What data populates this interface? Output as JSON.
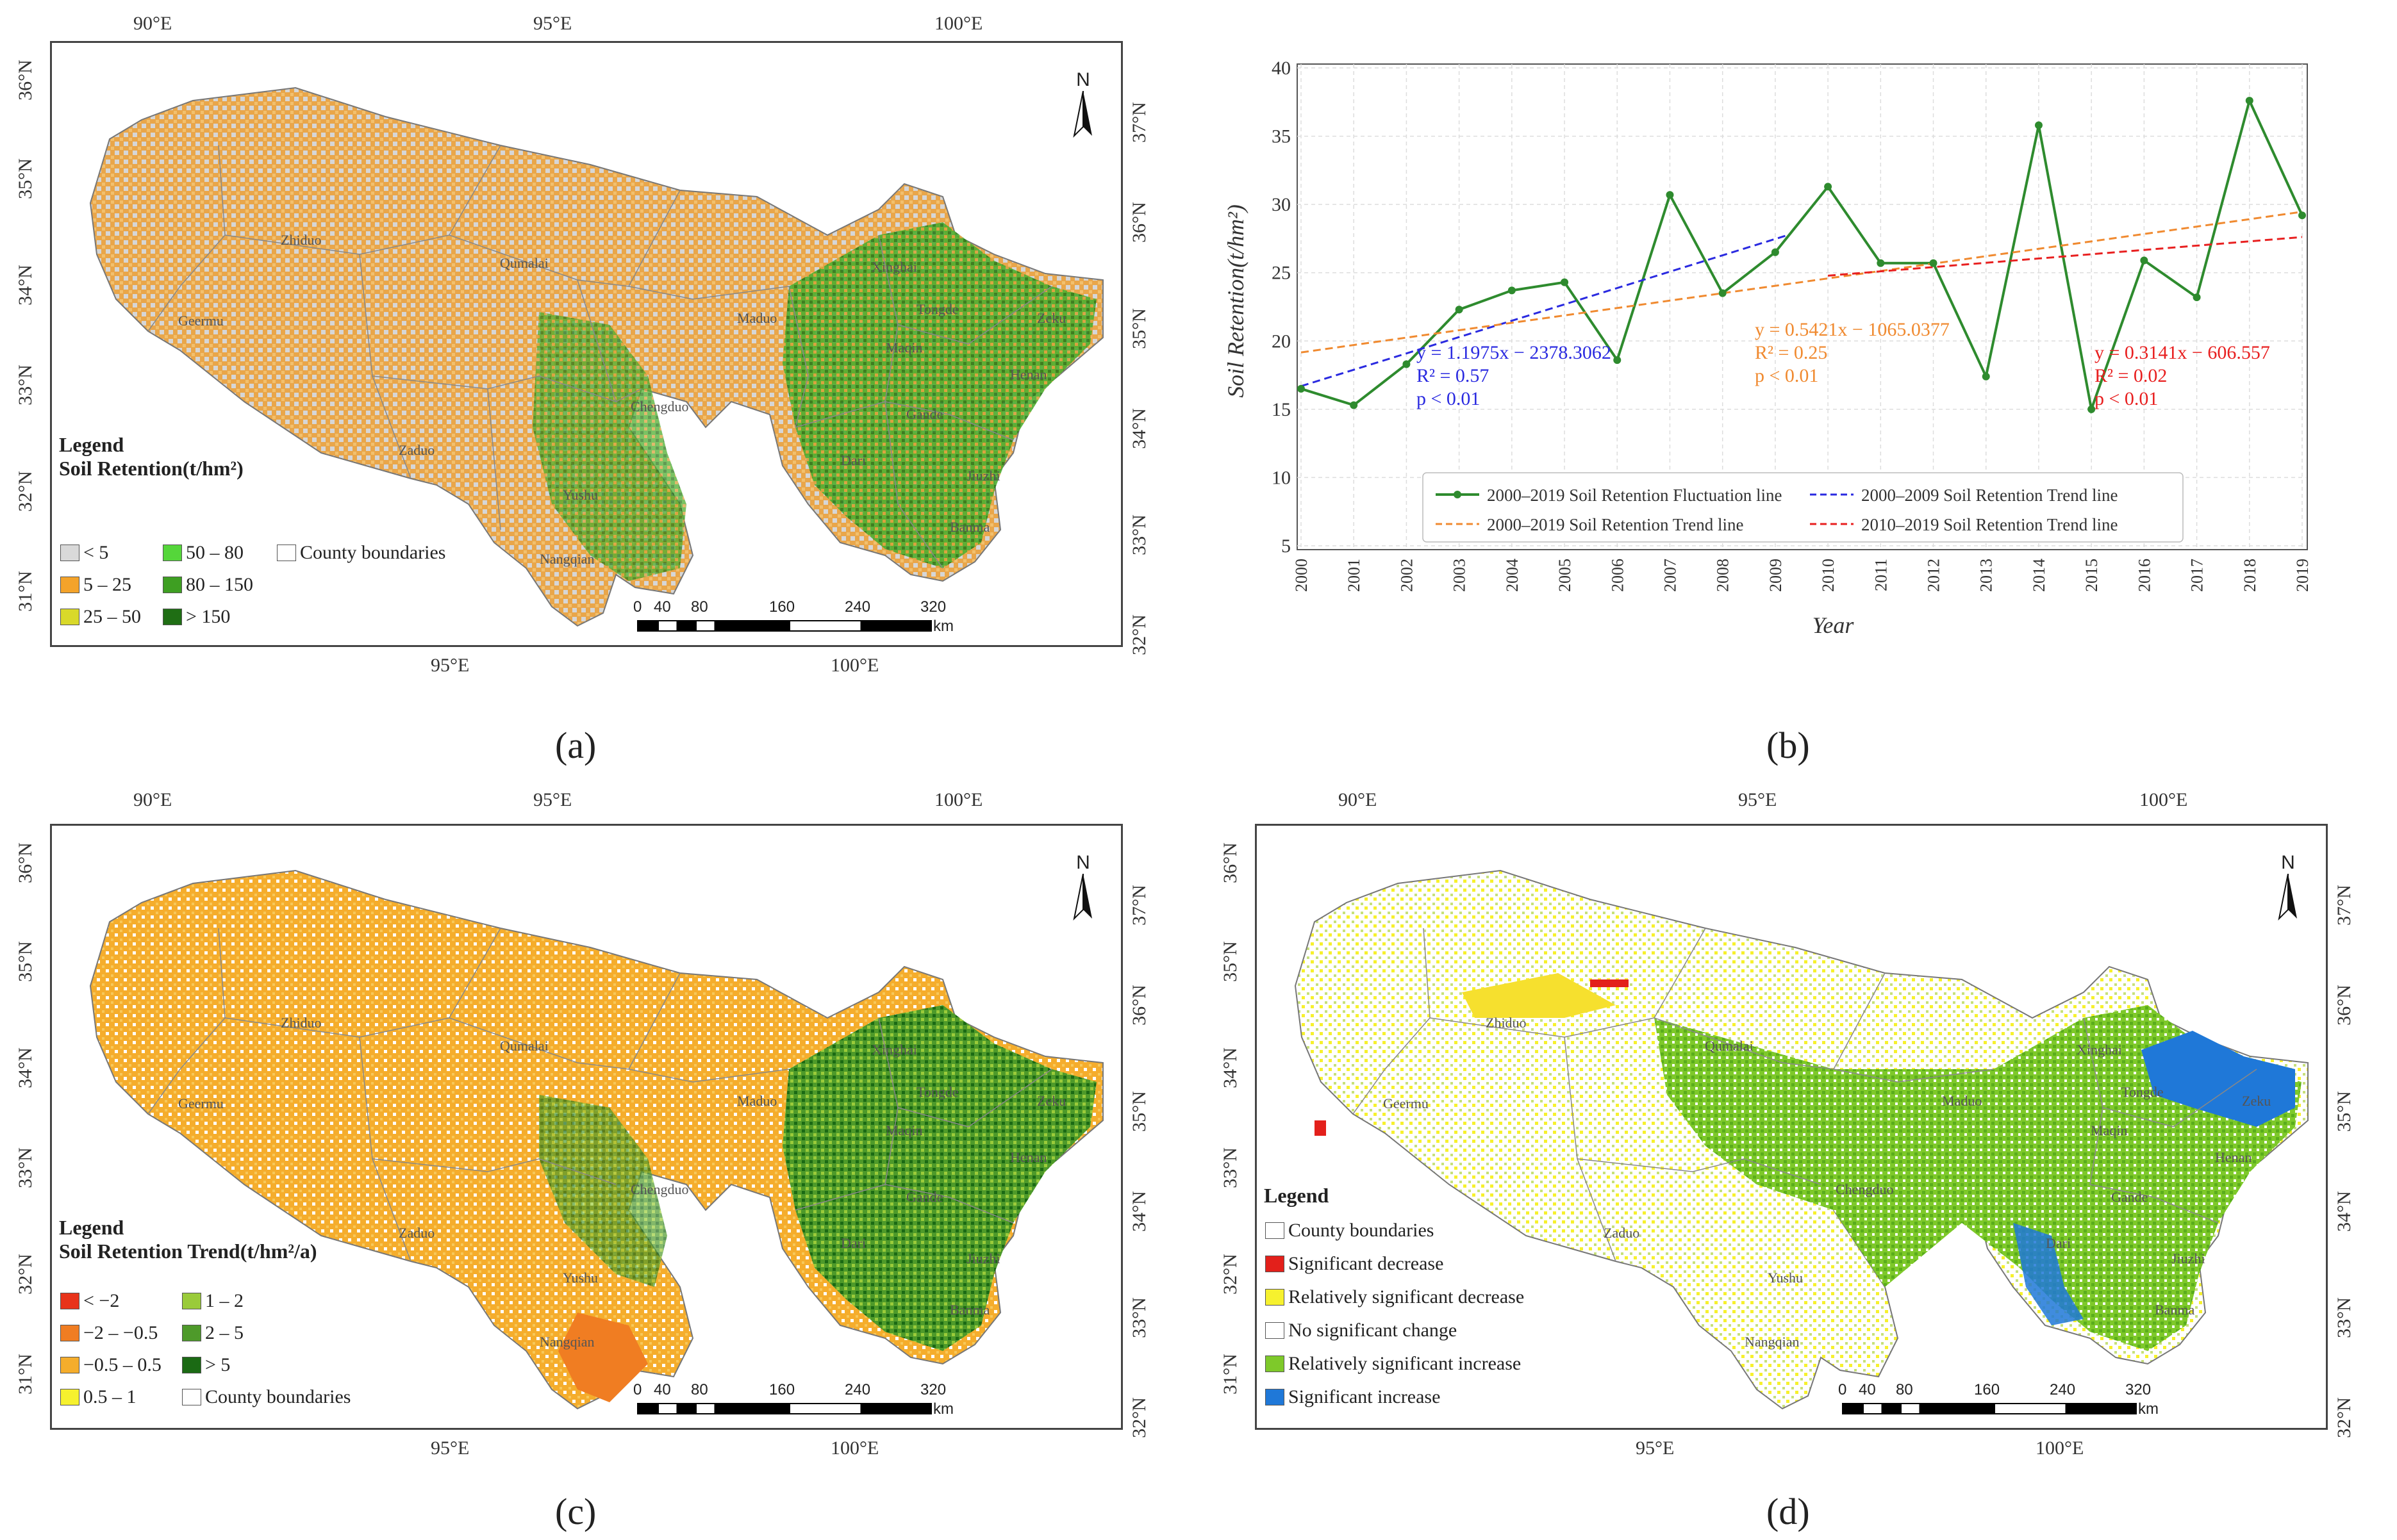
{
  "captions": {
    "a": "(a)",
    "b": "(b)",
    "c": "(c)",
    "d": "(d)"
  },
  "map_axes": {
    "top_lon": [
      "90°E",
      "95°E",
      "100°E"
    ],
    "bottom_lon": [
      "95°E",
      "100°E"
    ],
    "left_lat": [
      "36°N",
      "35°N",
      "34°N",
      "33°N",
      "32°N",
      "31°N"
    ],
    "right_lat": [
      "37°N",
      "36°N",
      "35°N",
      "34°N",
      "33°N",
      "32°N"
    ]
  },
  "counties": [
    "Zhiduo",
    "Geermu",
    "Qumalai",
    "Maduo",
    "Xinghai",
    "Tongde",
    "Zeku",
    "Maqin",
    "Henan",
    "Chengduo",
    "Gande",
    "Zaduo",
    "Dari",
    "Jiuzhi",
    "Yushu",
    "Banma",
    "Nangqian"
  ],
  "north_label": "N",
  "scale_bar": {
    "ticks": [
      "0",
      "40",
      "80",
      "160",
      "240",
      "320"
    ],
    "unit": "km"
  },
  "map_a_legend": {
    "title1": "Legend",
    "title2": "Soil Retention(t/hm²)",
    "items": [
      {
        "label": "< 5",
        "color": "#d9d9d9"
      },
      {
        "label": "50 – 80",
        "color": "#55d63a"
      },
      {
        "label": "County boundaries",
        "color": "#ffffff"
      },
      {
        "label": "5 – 25",
        "color": "#f4a32a"
      },
      {
        "label": "80 – 150",
        "color": "#3e9f22"
      },
      {
        "label": "25 – 50",
        "color": "#d9d92a"
      },
      {
        "label": "> 150",
        "color": "#1f6e14"
      }
    ]
  },
  "map_c_legend": {
    "title1": "Legend",
    "title2": "Soil Retention Trend(t/hm²/a)",
    "items": [
      {
        "label": "< −2",
        "color": "#e8331a"
      },
      {
        "label": "1 – 2",
        "color": "#9acb3a"
      },
      {
        "label": "−2 – −0.5",
        "color": "#f07d22"
      },
      {
        "label": "2 – 5",
        "color": "#4e9a2a"
      },
      {
        "label": "−0.5 – 0.5",
        "color": "#f5ad2c"
      },
      {
        "label": "> 5",
        "color": "#1b6a14"
      },
      {
        "label": "0.5 – 1",
        "color": "#f6f12e"
      },
      {
        "label": "County boundaries",
        "color": "#ffffff"
      }
    ]
  },
  "map_d_legend": {
    "title1": "Legend",
    "items": [
      {
        "label": "County boundaries",
        "color": "#ffffff"
      },
      {
        "label": "Significant decrease",
        "color": "#e3201b"
      },
      {
        "label": "Relatively significant decrease",
        "color": "#f6f12e"
      },
      {
        "label": "No significant change",
        "color": "#ffffff"
      },
      {
        "label": "Relatively significant increase",
        "color": "#7ec92a"
      },
      {
        "label": "Significant increase",
        "color": "#1f78d8"
      }
    ]
  },
  "chart_data": {
    "type": "line",
    "title": "",
    "xlabel": "Year",
    "ylabel": "Soil Retention(t/hm²)",
    "ylim": [
      5,
      40
    ],
    "yticks": [
      5,
      10,
      15,
      20,
      25,
      30,
      35,
      40
    ],
    "x": [
      2000,
      2001,
      2002,
      2003,
      2004,
      2005,
      2006,
      2007,
      2008,
      2009,
      2010,
      2011,
      2012,
      2013,
      2014,
      2015,
      2016,
      2017,
      2018,
      2019
    ],
    "series": [
      {
        "name": "2000–2019 Soil Retention Fluctuation line",
        "color": "#2e8b2e",
        "style": "solid-marker",
        "values": [
          16.5,
          15.3,
          18.3,
          22.3,
          23.7,
          24.3,
          18.6,
          30.7,
          23.5,
          26.5,
          31.3,
          25.7,
          25.7,
          17.4,
          35.8,
          15.0,
          25.9,
          23.2,
          37.6,
          29.2
        ]
      },
      {
        "name": "2000–2009 Soil Retention Trend line",
        "color": "#2a2ae0",
        "style": "dashed",
        "x_range": [
          2000,
          2009.2
        ],
        "slope": 1.1975,
        "intercept": -2378.3062
      },
      {
        "name": "2000–2019 Soil Retention Trend line",
        "color": "#f08a30",
        "style": "dashed",
        "x_range": [
          2000,
          2019
        ],
        "slope": 0.5421,
        "intercept": -1065.0377
      },
      {
        "name": "2010–2019 Soil Retention Trend line",
        "color": "#e82020",
        "style": "dashed",
        "x_range": [
          2010,
          2019
        ],
        "slope": 0.3141,
        "intercept": -606.557
      }
    ],
    "annotations": [
      {
        "lines": [
          "y = 1.1975x − 2378.3062",
          "R² = 0.57",
          "p < 0.01"
        ],
        "color": "#2a2ae0"
      },
      {
        "lines": [
          "y = 0.5421x − 1065.0377",
          "R² = 0.25",
          "p < 0.01"
        ],
        "color": "#f08a30"
      },
      {
        "lines": [
          "y = 0.3141x − 606.557",
          "R² = 0.02",
          "p < 0.01"
        ],
        "color": "#e82020"
      }
    ]
  }
}
